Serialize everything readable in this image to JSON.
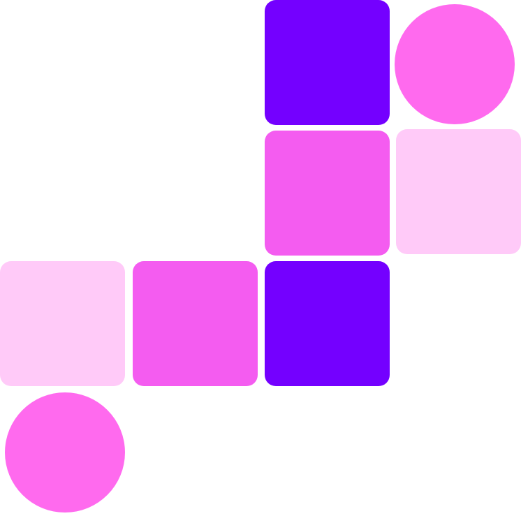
{
  "palette": {
    "violet": "#7400ff",
    "hot_pink": "#ff6aee",
    "magenta": "#f45cf0",
    "light_pink": "#ffcaf8",
    "background": "#ffffff"
  },
  "tiles": [
    {
      "id": "t1",
      "shape": "square",
      "color": "#7400ff"
    },
    {
      "id": "t2",
      "shape": "circle",
      "color": "#ff6aee"
    },
    {
      "id": "t3",
      "shape": "square",
      "color": "#f45cf0"
    },
    {
      "id": "t4",
      "shape": "square",
      "color": "#ffcaf8"
    },
    {
      "id": "t5",
      "shape": "square",
      "color": "#ffcaf8"
    },
    {
      "id": "t6",
      "shape": "square",
      "color": "#f45cf0"
    },
    {
      "id": "t7",
      "shape": "square",
      "color": "#7400ff"
    },
    {
      "id": "t8",
      "shape": "circle",
      "color": "#ff6aee"
    }
  ]
}
